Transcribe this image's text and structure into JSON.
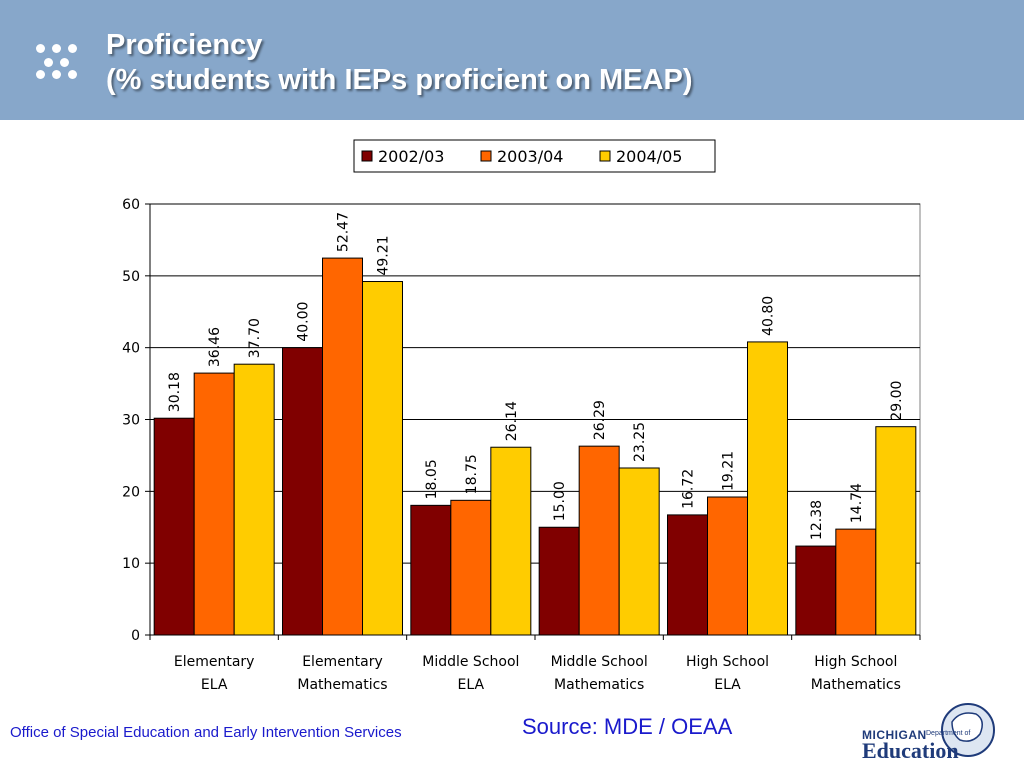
{
  "header": {
    "title_line1": "Proficiency",
    "title_line2": "(% students with IEPs proficient on MEAP)"
  },
  "footer": {
    "office": "Office of Special Education and Early Intervention Services",
    "source": "Source: MDE / OEAA"
  },
  "logo": {
    "michigan": "MICHIGAN",
    "department": "Department of",
    "education": "Education"
  },
  "colors": {
    "header_bg": "#87a7ca",
    "series": [
      "#800000",
      "#ff6600",
      "#ffcc00"
    ],
    "footer_text": "#1a1acc"
  },
  "chart_data": {
    "type": "bar",
    "title": "",
    "xlabel": "",
    "ylabel": "",
    "ylim": [
      0,
      60
    ],
    "yticks": [
      0,
      10,
      20,
      30,
      40,
      50,
      60
    ],
    "grid": true,
    "legend_position": "top-right",
    "categories": [
      [
        "Elementary",
        "ELA"
      ],
      [
        "Elementary",
        "Mathematics"
      ],
      [
        "Middle School",
        "ELA"
      ],
      [
        "Middle School",
        "Mathematics"
      ],
      [
        "High School",
        "ELA"
      ],
      [
        "High School",
        "Mathematics"
      ]
    ],
    "series": [
      {
        "name": "2002/03",
        "values": [
          30.18,
          40.0,
          18.05,
          15.0,
          16.72,
          12.38
        ],
        "labels": [
          "30.18",
          "40.00",
          "18.05",
          "15.00",
          "16.72",
          "12.38"
        ]
      },
      {
        "name": "2003/04",
        "values": [
          36.46,
          52.47,
          18.75,
          26.29,
          19.21,
          14.74
        ],
        "labels": [
          "36.46",
          "52.47",
          "18.75",
          "26.29",
          "19.21",
          "14.74"
        ]
      },
      {
        "name": "2004/05",
        "values": [
          37.7,
          49.21,
          26.14,
          23.25,
          40.8,
          29.0
        ],
        "labels": [
          "37.70",
          "49.21",
          "26.14",
          "23.25",
          "40.80",
          "29.00"
        ]
      }
    ]
  }
}
